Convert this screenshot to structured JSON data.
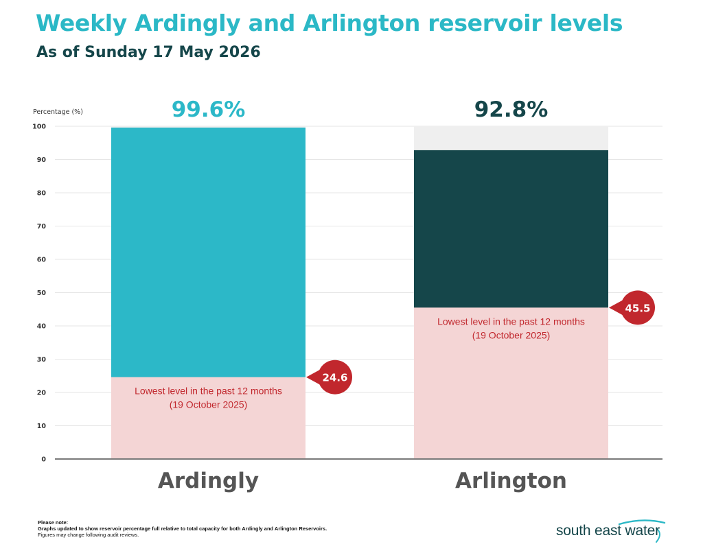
{
  "header": {
    "title": "Weekly Ardingly and Arlington reservoir levels",
    "subtitle": "As of Sunday 17 May 2026"
  },
  "chart_data": {
    "type": "bar",
    "ylabel": "Percentage (%)",
    "ylim": [
      0,
      100
    ],
    "yticks": [
      0,
      10,
      20,
      30,
      40,
      50,
      60,
      70,
      80,
      90,
      100
    ],
    "grid": true,
    "categories": [
      "Ardingly",
      "Arlington"
    ],
    "values": [
      99.6,
      92.8
    ],
    "value_labels": [
      "99.6%",
      "92.8%"
    ],
    "lowest_values": [
      24.6,
      45.5
    ],
    "lowest_labels": [
      "24.6",
      "45.5"
    ],
    "lowest_text_line1": "Lowest level in the past 12 months",
    "lowest_text_line2": "(19 October 2025)",
    "colors": {
      "bars": [
        "#2cb8c8",
        "#15464a"
      ],
      "lowest_zone": "#f4d5d5",
      "lowest_text": "#c1272d",
      "callout": "#c1272d",
      "empty_capacity": "#efefef",
      "axis": "#7a7a7a",
      "category_label": "#555555"
    }
  },
  "footer": {
    "note_title": "Please note:",
    "note_line1": "Graphs updated to show reservoir percentage full relative to total capacity for both Ardingly and Arlington Reservoirs.",
    "note_line2": "Figures may change following audit reviews.",
    "logo_text": "south east water"
  }
}
